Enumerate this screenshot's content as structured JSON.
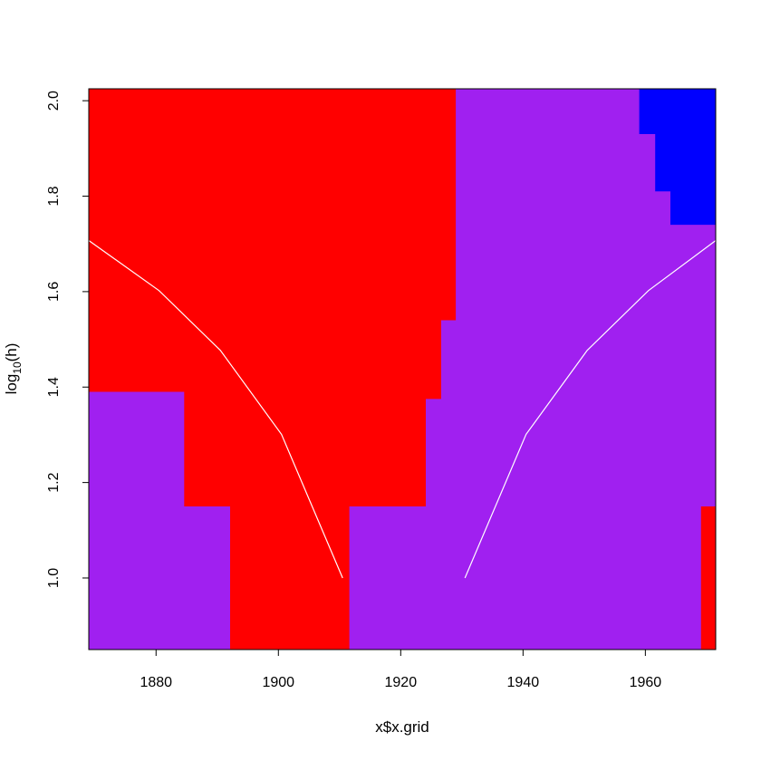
{
  "chart_data": {
    "type": "heatmap",
    "title": "",
    "xlabel": "x$x.grid",
    "ylabel_base": "log",
    "ylabel_sub": "10",
    "ylabel_rest": "(h)",
    "xlim": [
      1869,
      1971.5
    ],
    "ylim": [
      0.85,
      2.025
    ],
    "x_ticks": [
      1880,
      1900,
      1920,
      1940,
      1960
    ],
    "x_tick_labels": [
      "1880",
      "1900",
      "1920",
      "1940",
      "1960"
    ],
    "y_ticks": [
      1.0,
      1.2,
      1.4,
      1.6,
      1.8,
      2.0
    ],
    "y_tick_labels": [
      "1.0",
      "1.2",
      "1.4",
      "1.6",
      "1.8",
      "2.0"
    ],
    "background_color": "#A020F0",
    "region_colors": {
      "red": "#FF0000",
      "blue": "#0000FF",
      "purple": "#A020F0"
    },
    "regions": [
      {
        "color": "red",
        "points": [
          [
            1869,
            2.025
          ],
          [
            1929,
            2.025
          ],
          [
            1929,
            1.54
          ],
          [
            1926.6,
            1.54
          ],
          [
            1926.6,
            1.375
          ],
          [
            1924.1,
            1.375
          ],
          [
            1924.1,
            1.15
          ],
          [
            1911.6,
            1.15
          ],
          [
            1911.6,
            0.85
          ],
          [
            1892.1,
            0.85
          ],
          [
            1892.1,
            1.15
          ],
          [
            1884.6,
            1.15
          ],
          [
            1884.6,
            1.39
          ],
          [
            1869,
            1.39
          ]
        ]
      },
      {
        "color": "blue",
        "points": [
          [
            1959,
            2.025
          ],
          [
            1971.5,
            2.025
          ],
          [
            1971.5,
            1.74
          ],
          [
            1964.1,
            1.74
          ],
          [
            1964.1,
            1.81
          ],
          [
            1961.6,
            1.81
          ],
          [
            1961.6,
            1.93
          ],
          [
            1959,
            1.93
          ]
        ]
      },
      {
        "color": "red",
        "points": [
          [
            1969.1,
            1.15
          ],
          [
            1971.5,
            1.15
          ],
          [
            1971.5,
            0.85
          ],
          [
            1969.1,
            0.85
          ]
        ]
      }
    ],
    "lines": [
      {
        "color": "#FFFFFF",
        "x": [
          1869,
          1880.5,
          1890.5,
          1900.5,
          1910.5
        ],
        "y": [
          1.707,
          1.602,
          1.477,
          1.301,
          1.0
        ]
      },
      {
        "color": "#FFFFFF",
        "x": [
          1930.5,
          1940.5,
          1950.5,
          1960.5,
          1971.5
        ],
        "y": [
          1.0,
          1.301,
          1.477,
          1.602,
          1.707
        ]
      }
    ],
    "grid": false,
    "legend": "none"
  }
}
